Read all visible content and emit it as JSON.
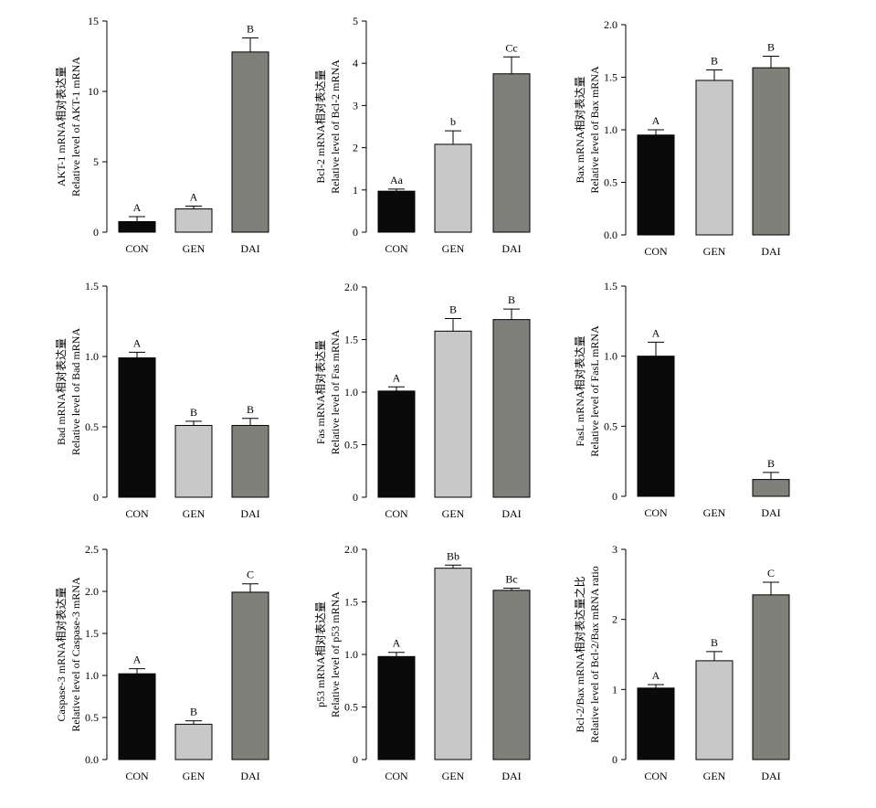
{
  "chart_data": [
    {
      "type": "bar",
      "ylabel_cn": "AKT-1 mRNA相对表达量",
      "ylabel_en": "Relative level of AKT-1 mRNA",
      "categories": [
        "CON",
        "GEN",
        "DAI"
      ],
      "values": [
        0.75,
        1.65,
        12.8
      ],
      "errors": [
        0.35,
        0.2,
        1.0
      ],
      "letters": [
        "A",
        "A",
        "B"
      ],
      "ylim": [
        0,
        15
      ],
      "yticks": [
        0,
        5,
        10,
        15
      ],
      "ytick_labels": [
        "0",
        "5",
        "10",
        "15"
      ]
    },
    {
      "type": "bar",
      "ylabel_cn": "Bcl-2 mRNA相对表达量",
      "ylabel_en": "Relative level of Bcl-2 mRNA",
      "categories": [
        "CON",
        "GEN",
        "DAI"
      ],
      "values": [
        0.97,
        2.08,
        3.75
      ],
      "errors": [
        0.05,
        0.32,
        0.4
      ],
      "letters": [
        "Aa",
        "b",
        "Cc"
      ],
      "ylim": [
        0,
        5
      ],
      "yticks": [
        0,
        1,
        2,
        3,
        4,
        5
      ],
      "ytick_labels": [
        "0",
        "1",
        "2",
        "3",
        "4",
        "5"
      ]
    },
    {
      "type": "bar",
      "ylabel_cn": "Bax mRNA相对表达量",
      "ylabel_en": "Relative level of Bax mRNA",
      "categories": [
        "CON",
        "GEN",
        "DAI"
      ],
      "values": [
        0.95,
        1.47,
        1.59
      ],
      "errors": [
        0.05,
        0.1,
        0.11
      ],
      "letters": [
        "A",
        "B",
        "B"
      ],
      "ylim": [
        0,
        2
      ],
      "yticks": [
        0,
        0.5,
        1,
        1.5,
        2
      ],
      "ytick_labels": [
        "0.0",
        "0.5",
        "1.0",
        "1.5",
        "2.0"
      ]
    },
    {
      "type": "bar",
      "ylabel_cn": "Bad mRNA相对表达量",
      "ylabel_en": "Relative level of Bad mRNA",
      "categories": [
        "CON",
        "GEN",
        "DAI"
      ],
      "values": [
        0.99,
        0.51,
        0.51
      ],
      "errors": [
        0.04,
        0.03,
        0.05
      ],
      "letters": [
        "A",
        "B",
        "B"
      ],
      "ylim": [
        0,
        1.5
      ],
      "yticks": [
        0,
        0.5,
        1,
        1.5
      ],
      "ytick_labels": [
        "0",
        "0.5",
        "1.0",
        "1.5"
      ]
    },
    {
      "type": "bar",
      "ylabel_cn": "Fas mRNA相对表达量",
      "ylabel_en": "Relative level of Fas mRNA",
      "categories": [
        "CON",
        "GEN",
        "DAI"
      ],
      "values": [
        1.01,
        1.58,
        1.69
      ],
      "errors": [
        0.04,
        0.12,
        0.1
      ],
      "letters": [
        "A",
        "B",
        "B"
      ],
      "ylim": [
        0,
        2
      ],
      "yticks": [
        0,
        0.5,
        1,
        1.5,
        2
      ],
      "ytick_labels": [
        "0",
        "0.5",
        "1.0",
        "1.5",
        "2.0"
      ]
    },
    {
      "type": "bar",
      "ylabel_cn": "FasL mRNA相对表达量",
      "ylabel_en": "Relative level of FasL mRNA",
      "categories": [
        "CON",
        "GEN",
        "DAI"
      ],
      "values": [
        1.0,
        0,
        0.12
      ],
      "errors": [
        0.1,
        0,
        0.05
      ],
      "letters": [
        "A",
        "",
        "B"
      ],
      "ylim": [
        0,
        1.5
      ],
      "yticks": [
        0,
        0.5,
        1,
        1.5
      ],
      "ytick_labels": [
        "0",
        "0.5",
        "1.0",
        "1.5"
      ]
    },
    {
      "type": "bar",
      "ylabel_cn": "Caspase-3 mRNA相对表达量",
      "ylabel_en": "Relative level of Caspase-3 mRNA",
      "categories": [
        "CON",
        "GEN",
        "DAI"
      ],
      "values": [
        1.02,
        0.42,
        1.99
      ],
      "errors": [
        0.06,
        0.04,
        0.1
      ],
      "letters": [
        "A",
        "B",
        "C"
      ],
      "ylim": [
        0,
        2.5
      ],
      "yticks": [
        0,
        0.5,
        1,
        1.5,
        2,
        2.5
      ],
      "ytick_labels": [
        "0.0",
        "0.5",
        "1.0",
        "1.5",
        "2.0",
        "2.5"
      ]
    },
    {
      "type": "bar",
      "ylabel_cn": "p53 mRNA相对表达量",
      "ylabel_en": "Relative level of p53 mRNA",
      "categories": [
        "CON",
        "GEN",
        "DAI"
      ],
      "values": [
        0.98,
        1.82,
        1.61
      ],
      "errors": [
        0.04,
        0.03,
        0.02
      ],
      "letters": [
        "A",
        "Bb",
        "Bc"
      ],
      "ylim": [
        0,
        2
      ],
      "yticks": [
        0,
        0.5,
        1,
        1.5,
        2
      ],
      "ytick_labels": [
        "0",
        "0.5",
        "1.0",
        "1.5",
        "2.0"
      ]
    },
    {
      "type": "bar",
      "ylabel_cn": "Bcl-2/Bax mRNA相对表达量之比",
      "ylabel_en": "Relative level of Bcl-2/Bax mRNA ratio",
      "categories": [
        "CON",
        "GEN",
        "DAI"
      ],
      "values": [
        1.02,
        1.41,
        2.35
      ],
      "errors": [
        0.05,
        0.13,
        0.18
      ],
      "letters": [
        "A",
        "B",
        "C"
      ],
      "ylim": [
        0,
        3
      ],
      "yticks": [
        0,
        1,
        2,
        3
      ],
      "ytick_labels": [
        "0",
        "1",
        "2",
        "3"
      ]
    }
  ],
  "colors": {
    "CON": "#0a0a0a",
    "GEN": "#c8c8c8",
    "DAI": "#80807a",
    "axis": "#000000"
  }
}
